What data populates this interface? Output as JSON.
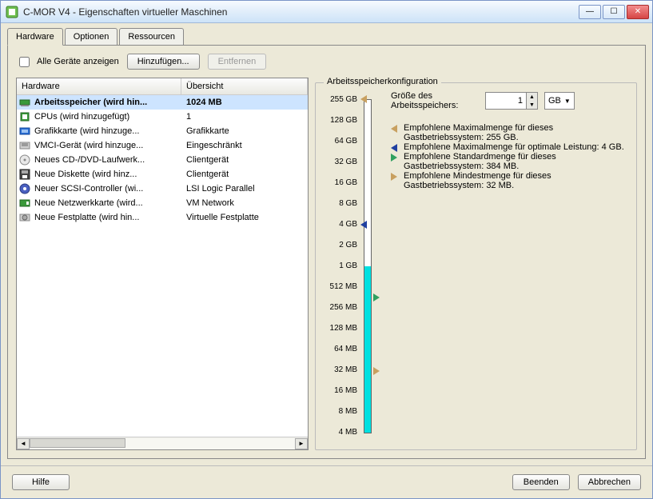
{
  "window": {
    "title": "C-MOR V4 - Eigenschaften virtueller Maschinen"
  },
  "tabs": {
    "hardware": "Hardware",
    "optionen": "Optionen",
    "ressourcen": "Ressourcen"
  },
  "controls": {
    "show_all_label": "Alle Geräte anzeigen",
    "add_btn": "Hinzufügen...",
    "remove_btn": "Entfernen"
  },
  "hw_table": {
    "col_hardware": "Hardware",
    "col_overview": "Übersicht",
    "rows": [
      {
        "icon": "memory",
        "hw": "Arbeitsspeicher (wird hin...",
        "ov": "1024 MB",
        "selected": true
      },
      {
        "icon": "cpu",
        "hw": "CPUs (wird hinzugefügt)",
        "ov": "1"
      },
      {
        "icon": "video",
        "hw": "Grafikkarte  (wird hinzuge...",
        "ov": "Grafikkarte"
      },
      {
        "icon": "vmci",
        "hw": "VMCI-Gerät (wird hinzuge...",
        "ov": "Eingeschränkt"
      },
      {
        "icon": "cd",
        "hw": "Neues CD-/DVD-Laufwerk...",
        "ov": "Clientgerät"
      },
      {
        "icon": "floppy",
        "hw": "Neue Diskette (wird hinz...",
        "ov": "Clientgerät"
      },
      {
        "icon": "scsi",
        "hw": "Neuer SCSI-Controller (wi...",
        "ov": "LSI Logic Parallel"
      },
      {
        "icon": "nic",
        "hw": "Neue Netzwerkkarte (wird...",
        "ov": "VM Network"
      },
      {
        "icon": "disk",
        "hw": "Neue Festplatte (wird hin...",
        "ov": "Virtuelle Festplatte"
      }
    ]
  },
  "mem_panel": {
    "legend": "Arbeitsspeicherkonfiguration",
    "size_label": "Größe des Arbeitsspeichers:",
    "size_value": "1",
    "size_unit": "GB",
    "slider": {
      "labels": [
        "255 GB",
        "128 GB",
        "64 GB",
        "32 GB",
        "16 GB",
        "8 GB",
        "4 GB",
        "2 GB",
        "1 GB",
        "512 MB",
        "256 MB",
        "128 MB",
        "64 MB",
        "32 MB",
        "16 MB",
        "8 MB",
        "4 MB"
      ],
      "fill_index": 8,
      "markers": [
        {
          "side": "left",
          "color": "#c8a060",
          "at_index": 0
        },
        {
          "side": "left",
          "color": "#2040a0",
          "at_index": 6
        },
        {
          "side": "right",
          "color": "#30a060",
          "at_index": 9.5
        },
        {
          "side": "right",
          "color": "#c8a060",
          "at_index": 13
        }
      ]
    },
    "notes": [
      {
        "color": "#c8a060",
        "shape": "left",
        "text": "Empfohlene Maximalmenge für dieses Gastbetriebssystem: 255 GB."
      },
      {
        "color": "#2040a0",
        "shape": "left",
        "text": "Empfohlene Maximalmenge für optimale Leistung: 4 GB."
      },
      {
        "color": "#30a060",
        "shape": "right",
        "text": "Empfohlene Standardmenge für dieses Gastbetriebssystem: 384 MB."
      },
      {
        "color": "#c8a060",
        "shape": "right",
        "text": "Empfohlene Mindestmenge für dieses Gastbetriebssystem: 32 MB."
      }
    ]
  },
  "footer": {
    "help": "Hilfe",
    "finish": "Beenden",
    "cancel": "Abbrechen"
  },
  "colors": {
    "fill": "#00e0e0"
  }
}
